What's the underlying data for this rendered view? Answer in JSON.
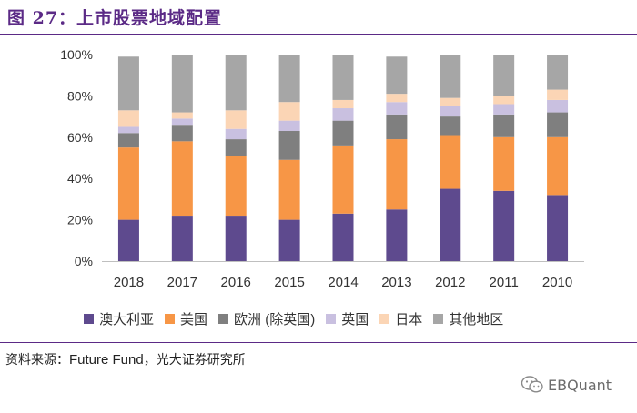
{
  "figure": {
    "title": "图 27：上市股票地域配置",
    "source_label": "资料来源：",
    "source_en": "Future Fund",
    "source_sep": "，",
    "source_cn": "光大证券研究所",
    "watermark_text": "EBQuant",
    "watermark_icon": "wechat-icon"
  },
  "chart_data": {
    "type": "bar",
    "stacked": true,
    "title": "",
    "xlabel": "",
    "ylabel": "",
    "ylim": [
      0,
      100
    ],
    "yticks": [
      "0%",
      "20%",
      "40%",
      "60%",
      "80%",
      "100%"
    ],
    "ytick_values": [
      0,
      20,
      40,
      60,
      80,
      100
    ],
    "grid": false,
    "legend_position": "bottom",
    "categories": [
      "2018",
      "2017",
      "2016",
      "2015",
      "2014",
      "2013",
      "2012",
      "2011",
      "2010"
    ],
    "series": [
      {
        "name": "澳大利亚",
        "color": "#5e4a8e",
        "values": [
          20,
          22,
          22,
          20,
          23,
          25,
          35,
          34,
          32
        ]
      },
      {
        "name": "美国",
        "color": "#f79646",
        "values": [
          35,
          36,
          29,
          29,
          33,
          34,
          26,
          26,
          28
        ]
      },
      {
        "name": "欧洲 (除英国)",
        "color": "#7f7f7f",
        "values": [
          7,
          8,
          8,
          14,
          12,
          12,
          9,
          11,
          12
        ]
      },
      {
        "name": "英国",
        "color": "#c9c0e0",
        "values": [
          3,
          3,
          5,
          5,
          6,
          6,
          5,
          5,
          6
        ]
      },
      {
        "name": "日本",
        "color": "#fbd5b5",
        "values": [
          8,
          3,
          9,
          9,
          4,
          4,
          4,
          4,
          5
        ]
      },
      {
        "name": "其他地区",
        "color": "#a6a6a6",
        "values": [
          26,
          28,
          27,
          23,
          22,
          18,
          21,
          20,
          17
        ]
      }
    ]
  }
}
